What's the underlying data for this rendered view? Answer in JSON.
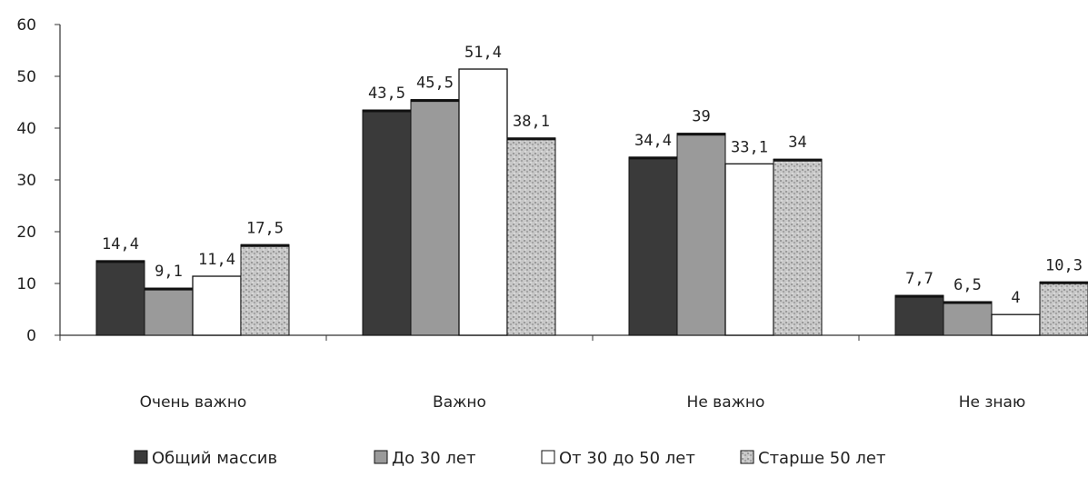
{
  "chart_data": {
    "type": "bar",
    "categories": [
      "Очень важно",
      "Важно",
      "Не важно",
      "Не знаю"
    ],
    "series": [
      {
        "name": "Общий массив",
        "values": [
          14.4,
          43.5,
          34.4,
          7.7
        ],
        "labels": [
          "14,4",
          "43,5",
          "34,4",
          "7,7"
        ],
        "color": "#3a3a3a"
      },
      {
        "name": "До 30 лет",
        "values": [
          9.1,
          45.5,
          39,
          6.5
        ],
        "labels": [
          "9,1",
          "45,5",
          "39",
          "6,5"
        ],
        "color": "#9a9a9a"
      },
      {
        "name": "От 30 до 50 лет",
        "values": [
          11.4,
          51.4,
          33.1,
          4
        ],
        "labels": [
          "11,4",
          "51,4",
          "33,1",
          "4"
        ],
        "color": "#ffffff"
      },
      {
        "name": "Старше 50 лет",
        "values": [
          17.5,
          38.1,
          34,
          10.3
        ],
        "labels": [
          "17,5",
          "38,1",
          "34",
          "10,3"
        ],
        "color": "#c4c4c4"
      }
    ],
    "y_ticks": [
      "0",
      "10",
      "20",
      "30",
      "40",
      "50",
      "60"
    ],
    "ylim": [
      0,
      60
    ],
    "grid": false,
    "legend_position": "bottom",
    "title": "",
    "xlabel": "",
    "ylabel": ""
  }
}
